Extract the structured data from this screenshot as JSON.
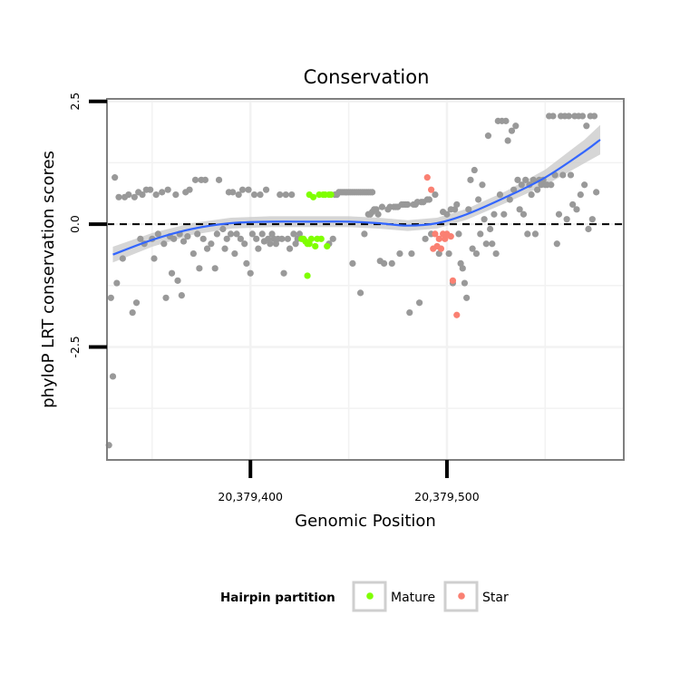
{
  "chart_data": {
    "type": "scatter",
    "title": "Conservation",
    "xlabel": "Genomic Position",
    "ylabel": "phyloP LRT conservation scores",
    "xlim": [
      20379327,
      20379590
    ],
    "ylim": [
      -4.8,
      2.55
    ],
    "x_ticks": [
      {
        "value": 20379400,
        "label": "20,379,400"
      },
      {
        "value": 20379500,
        "label": "20,379,500"
      }
    ],
    "y_ticks": [
      {
        "value": 2.5,
        "label": "2.5"
      },
      {
        "value": 0.0,
        "label": "0.0"
      },
      {
        "value": -2.5,
        "label": "-2.5"
      }
    ],
    "reference_line": {
      "y": 0,
      "style": "dashed"
    },
    "legend": {
      "title": "Hairpin partition",
      "position": "bottom",
      "entries": [
        {
          "name": "Mature",
          "color": "#7fff00"
        },
        {
          "name": "Star",
          "color": "#fa8072"
        }
      ]
    },
    "colors": {
      "other": "#999999",
      "smooth_line": "#3366ff",
      "confidence_band": "#c8c8c8"
    },
    "smooth": {
      "x": [
        20379330,
        20379350,
        20379370,
        20379390,
        20379410,
        20379430,
        20379450,
        20379465,
        20379480,
        20379495,
        20379510,
        20379530,
        20379550,
        20379570,
        20379578
      ],
      "y": [
        -0.62,
        -0.32,
        -0.1,
        0.02,
        0.05,
        0.05,
        0.05,
        0.02,
        -0.03,
        0.02,
        0.2,
        0.55,
        0.95,
        1.48,
        1.72
      ],
      "se": [
        0.16,
        0.14,
        0.12,
        0.11,
        0.11,
        0.11,
        0.11,
        0.11,
        0.11,
        0.11,
        0.11,
        0.12,
        0.16,
        0.24,
        0.3
      ]
    },
    "series": [
      {
        "name": "Other",
        "points": [
          [
            20379328,
            -4.5
          ],
          [
            20379329,
            -1.5
          ],
          [
            20379330,
            -3.1
          ],
          [
            20379331,
            0.95
          ],
          [
            20379332,
            -1.2
          ],
          [
            20379333,
            0.55
          ],
          [
            20379335,
            -0.7
          ],
          [
            20379336,
            0.55
          ],
          [
            20379338,
            0.6
          ],
          [
            20379340,
            -1.8
          ],
          [
            20379341,
            0.55
          ],
          [
            20379342,
            -1.6
          ],
          [
            20379343,
            0.65
          ],
          [
            20379344,
            -0.3
          ],
          [
            20379345,
            0.6
          ],
          [
            20379346,
            -0.4
          ],
          [
            20379347,
            0.7
          ],
          [
            20379349,
            0.7
          ],
          [
            20379350,
            -0.3
          ],
          [
            20379351,
            -0.7
          ],
          [
            20379352,
            0.6
          ],
          [
            20379353,
            -0.2
          ],
          [
            20379355,
            0.65
          ],
          [
            20379356,
            -0.4
          ],
          [
            20379357,
            -1.5
          ],
          [
            20379358,
            0.7
          ],
          [
            20379359,
            -0.25
          ],
          [
            20379360,
            -1.0
          ],
          [
            20379361,
            -0.3
          ],
          [
            20379362,
            0.6
          ],
          [
            20379363,
            -1.15
          ],
          [
            20379364,
            -0.2
          ],
          [
            20379365,
            -1.45
          ],
          [
            20379366,
            -0.35
          ],
          [
            20379367,
            0.65
          ],
          [
            20379368,
            -0.25
          ],
          [
            20379369,
            0.7
          ],
          [
            20379371,
            -0.6
          ],
          [
            20379372,
            0.9
          ],
          [
            20379373,
            -0.2
          ],
          [
            20379374,
            -0.9
          ],
          [
            20379375,
            0.9
          ],
          [
            20379376,
            -0.3
          ],
          [
            20379377,
            0.9
          ],
          [
            20379378,
            -0.5
          ],
          [
            20379380,
            -0.4
          ],
          [
            20379382,
            -0.9
          ],
          [
            20379383,
            -0.2
          ],
          [
            20379384,
            0.9
          ],
          [
            20379386,
            -0.1
          ],
          [
            20379387,
            -0.5
          ],
          [
            20379388,
            -0.3
          ],
          [
            20379389,
            0.65
          ],
          [
            20379390,
            -0.2
          ],
          [
            20379391,
            0.65
          ],
          [
            20379392,
            -0.6
          ],
          [
            20379393,
            -0.2
          ],
          [
            20379394,
            0.6
          ],
          [
            20379395,
            -0.3
          ],
          [
            20379396,
            0.7
          ],
          [
            20379397,
            -0.4
          ],
          [
            20379398,
            -0.8
          ],
          [
            20379399,
            0.7
          ],
          [
            20379400,
            -1.0
          ],
          [
            20379401,
            -0.2
          ],
          [
            20379402,
            0.6
          ],
          [
            20379403,
            -0.3
          ],
          [
            20379404,
            -0.5
          ],
          [
            20379405,
            0.6
          ],
          [
            20379406,
            -0.2
          ],
          [
            20379407,
            -0.35
          ],
          [
            20379408,
            0.7
          ],
          [
            20379409,
            -0.3
          ],
          [
            20379410,
            -0.4
          ],
          [
            20379411,
            -0.2
          ],
          [
            20379412,
            -0.3
          ],
          [
            20379413,
            -0.4
          ],
          [
            20379414,
            -0.3
          ],
          [
            20379415,
            0.6
          ],
          [
            20379416,
            -0.3
          ],
          [
            20379417,
            -1.0
          ],
          [
            20379418,
            0.6
          ],
          [
            20379419,
            -0.3
          ],
          [
            20379420,
            -0.5
          ],
          [
            20379421,
            0.6
          ],
          [
            20379422,
            -0.2
          ],
          [
            20379423,
            -0.4
          ],
          [
            20379424,
            -0.3
          ],
          [
            20379425,
            -0.2
          ],
          [
            20379440,
            -0.4
          ],
          [
            20379442,
            -0.3
          ],
          [
            20379443,
            0.6
          ],
          [
            20379444,
            0.6
          ],
          [
            20379445,
            0.65
          ],
          [
            20379446,
            0.65
          ],
          [
            20379447,
            0.65
          ],
          [
            20379448,
            0.65
          ],
          [
            20379449,
            0.65
          ],
          [
            20379450,
            0.65
          ],
          [
            20379451,
            0.65
          ],
          [
            20379452,
            0.65
          ],
          [
            20379453,
            0.65
          ],
          [
            20379454,
            0.65
          ],
          [
            20379455,
            0.65
          ],
          [
            20379456,
            0.65
          ],
          [
            20379457,
            0.65
          ],
          [
            20379458,
            0.65
          ],
          [
            20379459,
            0.65
          ],
          [
            20379460,
            0.65
          ],
          [
            20379461,
            0.65
          ],
          [
            20379462,
            0.65
          ],
          [
            20379452,
            -0.8
          ],
          [
            20379456,
            -1.4
          ],
          [
            20379458,
            -0.2
          ],
          [
            20379460,
            0.2
          ],
          [
            20379461,
            0.2
          ],
          [
            20379462,
            0.25
          ],
          [
            20379463,
            0.3
          ],
          [
            20379464,
            0.3
          ],
          [
            20379465,
            0.2
          ],
          [
            20379466,
            -0.75
          ],
          [
            20379467,
            0.35
          ],
          [
            20379468,
            -0.8
          ],
          [
            20379470,
            0.3
          ],
          [
            20379471,
            0.35
          ],
          [
            20379472,
            -0.8
          ],
          [
            20379473,
            0.35
          ],
          [
            20379474,
            0.35
          ],
          [
            20379475,
            0.35
          ],
          [
            20379476,
            -0.6
          ],
          [
            20379477,
            0.4
          ],
          [
            20379478,
            0.4
          ],
          [
            20379479,
            0.4
          ],
          [
            20379480,
            0.4
          ],
          [
            20379481,
            -1.8
          ],
          [
            20379482,
            -0.6
          ],
          [
            20379483,
            0.4
          ],
          [
            20379484,
            0.4
          ],
          [
            20379485,
            0.45
          ],
          [
            20379486,
            -1.6
          ],
          [
            20379487,
            0.45
          ],
          [
            20379488,
            0.45
          ],
          [
            20379489,
            -0.3
          ],
          [
            20379490,
            0.5
          ],
          [
            20379491,
            0.5
          ],
          [
            20379492,
            -0.2
          ],
          [
            20379494,
            0.6
          ],
          [
            20379496,
            -0.6
          ],
          [
            20379498,
            0.25
          ],
          [
            20379500,
            0.2
          ],
          [
            20379501,
            -0.6
          ],
          [
            20379502,
            0.3
          ],
          [
            20379503,
            -1.2
          ],
          [
            20379504,
            0.3
          ],
          [
            20379505,
            0.4
          ],
          [
            20379506,
            -0.2
          ],
          [
            20379507,
            -0.8
          ],
          [
            20379508,
            -0.9
          ],
          [
            20379509,
            -1.2
          ],
          [
            20379510,
            -1.5
          ],
          [
            20379511,
            0.3
          ],
          [
            20379512,
            0.9
          ],
          [
            20379513,
            -0.5
          ],
          [
            20379514,
            1.1
          ],
          [
            20379515,
            -0.6
          ],
          [
            20379516,
            0.5
          ],
          [
            20379517,
            -0.2
          ],
          [
            20379518,
            0.8
          ],
          [
            20379519,
            0.1
          ],
          [
            20379520,
            -0.4
          ],
          [
            20379521,
            1.8
          ],
          [
            20379522,
            -0.1
          ],
          [
            20379523,
            -0.4
          ],
          [
            20379524,
            0.2
          ],
          [
            20379525,
            -0.6
          ],
          [
            20379526,
            2.1
          ],
          [
            20379527,
            0.6
          ],
          [
            20379528,
            2.1
          ],
          [
            20379529,
            0.2
          ],
          [
            20379530,
            2.1
          ],
          [
            20379531,
            1.7
          ],
          [
            20379532,
            0.5
          ],
          [
            20379533,
            1.9
          ],
          [
            20379534,
            0.7
          ],
          [
            20379535,
            2.0
          ],
          [
            20379536,
            0.9
          ],
          [
            20379537,
            0.3
          ],
          [
            20379538,
            0.8
          ],
          [
            20379539,
            0.2
          ],
          [
            20379540,
            0.9
          ],
          [
            20379541,
            -0.2
          ],
          [
            20379542,
            0.8
          ],
          [
            20379543,
            0.6
          ],
          [
            20379544,
            0.9
          ],
          [
            20379545,
            -0.2
          ],
          [
            20379546,
            0.7
          ],
          [
            20379547,
            0.9
          ],
          [
            20379548,
            0.8
          ],
          [
            20379549,
            0.9
          ],
          [
            20379550,
            0.8
          ],
          [
            20379551,
            0.8
          ],
          [
            20379552,
            2.2
          ],
          [
            20379553,
            0.8
          ],
          [
            20379554,
            2.2
          ],
          [
            20379555,
            1.0
          ],
          [
            20379556,
            -0.4
          ],
          [
            20379557,
            0.2
          ],
          [
            20379558,
            2.2
          ],
          [
            20379559,
            1.0
          ],
          [
            20379560,
            2.2
          ],
          [
            20379561,
            0.1
          ],
          [
            20379562,
            2.2
          ],
          [
            20379563,
            1.0
          ],
          [
            20379564,
            0.4
          ],
          [
            20379565,
            2.2
          ],
          [
            20379566,
            0.3
          ],
          [
            20379567,
            2.2
          ],
          [
            20379568,
            0.6
          ],
          [
            20379569,
            2.2
          ],
          [
            20379570,
            0.8
          ],
          [
            20379571,
            2.0
          ],
          [
            20379572,
            -0.1
          ],
          [
            20379573,
            2.2
          ],
          [
            20379574,
            0.1
          ],
          [
            20379575,
            2.2
          ],
          [
            20379576,
            0.65
          ]
        ]
      },
      {
        "name": "Mature",
        "points": [
          [
            20379426,
            -0.3
          ],
          [
            20379427,
            -0.3
          ],
          [
            20379428,
            -0.35
          ],
          [
            20379429,
            -0.4
          ],
          [
            20379430,
            0.6
          ],
          [
            20379430,
            -0.4
          ],
          [
            20379431,
            -0.3
          ],
          [
            20379432,
            0.55
          ],
          [
            20379433,
            -0.45
          ],
          [
            20379434,
            -0.3
          ],
          [
            20379435,
            0.6
          ],
          [
            20379436,
            -0.3
          ],
          [
            20379437,
            0.6
          ],
          [
            20379438,
            0.6
          ],
          [
            20379439,
            -0.45
          ],
          [
            20379440,
            0.6
          ],
          [
            20379441,
            0.6
          ],
          [
            20379429,
            -1.05
          ]
        ]
      },
      {
        "name": "Star",
        "points": [
          [
            20379490,
            0.95
          ],
          [
            20379492,
            0.7
          ],
          [
            20379493,
            -0.5
          ],
          [
            20379494,
            -0.2
          ],
          [
            20379495,
            -0.45
          ],
          [
            20379496,
            -0.3
          ],
          [
            20379497,
            -0.5
          ],
          [
            20379498,
            -0.2
          ],
          [
            20379499,
            -0.3
          ],
          [
            20379500,
            -0.2
          ],
          [
            20379502,
            -0.25
          ],
          [
            20379503,
            -1.15
          ],
          [
            20379505,
            -1.85
          ]
        ]
      }
    ]
  }
}
